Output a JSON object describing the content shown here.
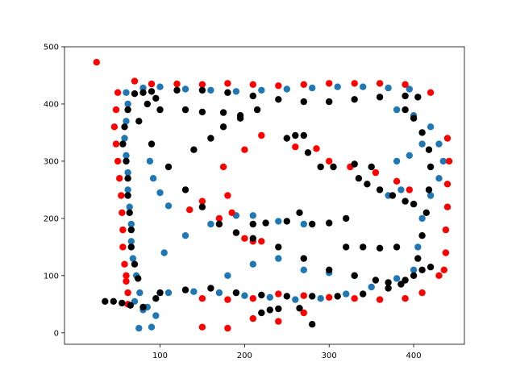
{
  "chart_data": {
    "type": "scatter",
    "title": "",
    "xlabel": "",
    "ylabel": "",
    "xlim": [
      -13,
      460
    ],
    "ylim": [
      -20,
      500
    ],
    "xticks": [
      100,
      200,
      300,
      400
    ],
    "yticks": [
      0,
      100,
      200,
      300,
      400,
      500
    ],
    "grid": false,
    "legend": "none",
    "series": [
      {
        "color": "#1f77b4",
        "points": [
          [
            60,
            420
          ],
          [
            80,
            428
          ],
          [
            100,
            430
          ],
          [
            130,
            426
          ],
          [
            160,
            424
          ],
          [
            190,
            422
          ],
          [
            220,
            424
          ],
          [
            250,
            426
          ],
          [
            280,
            428
          ],
          [
            310,
            430
          ],
          [
            340,
            430
          ],
          [
            370,
            428
          ],
          [
            395,
            426
          ],
          [
            62,
            400
          ],
          [
            60,
            370
          ],
          [
            58,
            340
          ],
          [
            60,
            310
          ],
          [
            62,
            280
          ],
          [
            62,
            250
          ],
          [
            64,
            220
          ],
          [
            66,
            190
          ],
          [
            66,
            160
          ],
          [
            68,
            130
          ],
          [
            72,
            100
          ],
          [
            76,
            70
          ],
          [
            80,
            40
          ],
          [
            105,
            140
          ],
          [
            130,
            170
          ],
          [
            160,
            190
          ],
          [
            190,
            205
          ],
          [
            210,
            205
          ],
          [
            240,
            195
          ],
          [
            270,
            190
          ],
          [
            110,
            70
          ],
          [
            140,
            72
          ],
          [
            170,
            70
          ],
          [
            200,
            65
          ],
          [
            230,
            62
          ],
          [
            260,
            58
          ],
          [
            290,
            60
          ],
          [
            320,
            68
          ],
          [
            350,
            80
          ],
          [
            380,
            95
          ],
          [
            400,
            110
          ],
          [
            405,
            150
          ],
          [
            410,
            200
          ],
          [
            420,
            240
          ],
          [
            430,
            270
          ],
          [
            435,
            300
          ],
          [
            430,
            330
          ],
          [
            420,
            360
          ],
          [
            400,
            380
          ],
          [
            380,
            390
          ],
          [
            88,
            300
          ],
          [
            92,
            270
          ],
          [
            100,
            245
          ],
          [
            110,
            222
          ],
          [
            180,
            100
          ],
          [
            210,
            120
          ],
          [
            240,
            130
          ],
          [
            270,
            110
          ],
          [
            300,
            105
          ],
          [
            330,
            100
          ],
          [
            380,
            300
          ],
          [
            395,
            310
          ],
          [
            410,
            330
          ],
          [
            385,
            250
          ],
          [
            370,
            240
          ],
          [
            70,
            55
          ],
          [
            85,
            45
          ],
          [
            95,
            30
          ],
          [
            90,
            10
          ],
          [
            75,
            8
          ]
        ]
      },
      {
        "color": "#ff0000",
        "points": [
          [
            25,
            473
          ],
          [
            70,
            440
          ],
          [
            90,
            435
          ],
          [
            120,
            435
          ],
          [
            150,
            434
          ],
          [
            180,
            436
          ],
          [
            210,
            434
          ],
          [
            240,
            432
          ],
          [
            270,
            434
          ],
          [
            300,
            436
          ],
          [
            330,
            436
          ],
          [
            360,
            436
          ],
          [
            390,
            434
          ],
          [
            420,
            420
          ],
          [
            50,
            420
          ],
          [
            48,
            390
          ],
          [
            46,
            360
          ],
          [
            48,
            330
          ],
          [
            50,
            300
          ],
          [
            52,
            270
          ],
          [
            54,
            240
          ],
          [
            55,
            210
          ],
          [
            56,
            180
          ],
          [
            56,
            150
          ],
          [
            58,
            120
          ],
          [
            60,
            90
          ],
          [
            62,
            70
          ],
          [
            440,
            340
          ],
          [
            442,
            300
          ],
          [
            440,
            260
          ],
          [
            440,
            220
          ],
          [
            438,
            180
          ],
          [
            438,
            140
          ],
          [
            436,
            110
          ],
          [
            430,
            100
          ],
          [
            410,
            70
          ],
          [
            390,
            60
          ],
          [
            360,
            58
          ],
          [
            330,
            60
          ],
          [
            300,
            62
          ],
          [
            270,
            65
          ],
          [
            240,
            68
          ],
          [
            210,
            60
          ],
          [
            180,
            58
          ],
          [
            150,
            60
          ],
          [
            150,
            10
          ],
          [
            180,
            8
          ],
          [
            210,
            25
          ],
          [
            240,
            20
          ],
          [
            270,
            35
          ],
          [
            135,
            215
          ],
          [
            150,
            230
          ],
          [
            175,
            290
          ],
          [
            200,
            320
          ],
          [
            220,
            345
          ],
          [
            180,
            240
          ],
          [
            200,
            165
          ],
          [
            210,
            160
          ],
          [
            220,
            160
          ],
          [
            260,
            325
          ],
          [
            285,
            322
          ],
          [
            300,
            300
          ],
          [
            325,
            290
          ],
          [
            355,
            280
          ],
          [
            380,
            265
          ],
          [
            395,
            250
          ],
          [
            170,
            200
          ],
          [
            185,
            210
          ],
          [
            60,
            100
          ],
          [
            62,
            50
          ]
        ]
      },
      {
        "color": "#000000",
        "points": [
          [
            70,
            418
          ],
          [
            90,
            422
          ],
          [
            120,
            424
          ],
          [
            150,
            424
          ],
          [
            180,
            420
          ],
          [
            210,
            414
          ],
          [
            240,
            408
          ],
          [
            270,
            404
          ],
          [
            300,
            404
          ],
          [
            330,
            408
          ],
          [
            360,
            412
          ],
          [
            390,
            414
          ],
          [
            405,
            412
          ],
          [
            62,
            390
          ],
          [
            58,
            360
          ],
          [
            56,
            330
          ],
          [
            60,
            300
          ],
          [
            62,
            270
          ],
          [
            62,
            240
          ],
          [
            64,
            210
          ],
          [
            66,
            180
          ],
          [
            66,
            150
          ],
          [
            70,
            120
          ],
          [
            74,
            95
          ],
          [
            75,
            370
          ],
          [
            90,
            330
          ],
          [
            110,
            290
          ],
          [
            130,
            250
          ],
          [
            150,
            220
          ],
          [
            170,
            190
          ],
          [
            190,
            175
          ],
          [
            210,
            165
          ],
          [
            240,
            150
          ],
          [
            270,
            130
          ],
          [
            300,
            110
          ],
          [
            330,
            100
          ],
          [
            355,
            92
          ],
          [
            370,
            88
          ],
          [
            385,
            85
          ],
          [
            80,
            420
          ],
          [
            85,
            400
          ],
          [
            95,
            410
          ],
          [
            100,
            390
          ],
          [
            140,
            320
          ],
          [
            160,
            340
          ],
          [
            175,
            360
          ],
          [
            195,
            375
          ],
          [
            215,
            390
          ],
          [
            100,
            70
          ],
          [
            130,
            75
          ],
          [
            160,
            78
          ],
          [
            190,
            70
          ],
          [
            220,
            66
          ],
          [
            250,
            64
          ],
          [
            280,
            64
          ],
          [
            310,
            64
          ],
          [
            340,
            68
          ],
          [
            370,
            78
          ],
          [
            390,
            92
          ],
          [
            400,
            100
          ],
          [
            410,
            110
          ],
          [
            420,
            115
          ],
          [
            405,
            130
          ],
          [
            410,
            170
          ],
          [
            415,
            210
          ],
          [
            418,
            250
          ],
          [
            420,
            290
          ],
          [
            418,
            320
          ],
          [
            410,
            350
          ],
          [
            400,
            375
          ],
          [
            390,
            390
          ],
          [
            35,
            55
          ],
          [
            45,
            55
          ],
          [
            55,
            52
          ],
          [
            65,
            48
          ],
          [
            80,
            45
          ],
          [
            95,
            60
          ],
          [
            210,
            190
          ],
          [
            225,
            192
          ],
          [
            250,
            195
          ],
          [
            265,
            210
          ],
          [
            280,
            190
          ],
          [
            300,
            192
          ],
          [
            320,
            200
          ],
          [
            250,
            340
          ],
          [
            260,
            345
          ],
          [
            270,
            345
          ],
          [
            275,
            315
          ],
          [
            290,
            290
          ],
          [
            305,
            290
          ],
          [
            330,
            295
          ],
          [
            350,
            290
          ],
          [
            335,
            270
          ],
          [
            345,
            260
          ],
          [
            360,
            250
          ],
          [
            375,
            240
          ],
          [
            390,
            230
          ],
          [
            400,
            225
          ],
          [
            130,
            390
          ],
          [
            150,
            386
          ],
          [
            175,
            385
          ],
          [
            195,
            380
          ],
          [
            320,
            150
          ],
          [
            340,
            150
          ],
          [
            360,
            148
          ],
          [
            380,
            150
          ],
          [
            280,
            15
          ],
          [
            240,
            42
          ],
          [
            265,
            43
          ],
          [
            230,
            40
          ],
          [
            220,
            35
          ]
        ]
      }
    ]
  }
}
